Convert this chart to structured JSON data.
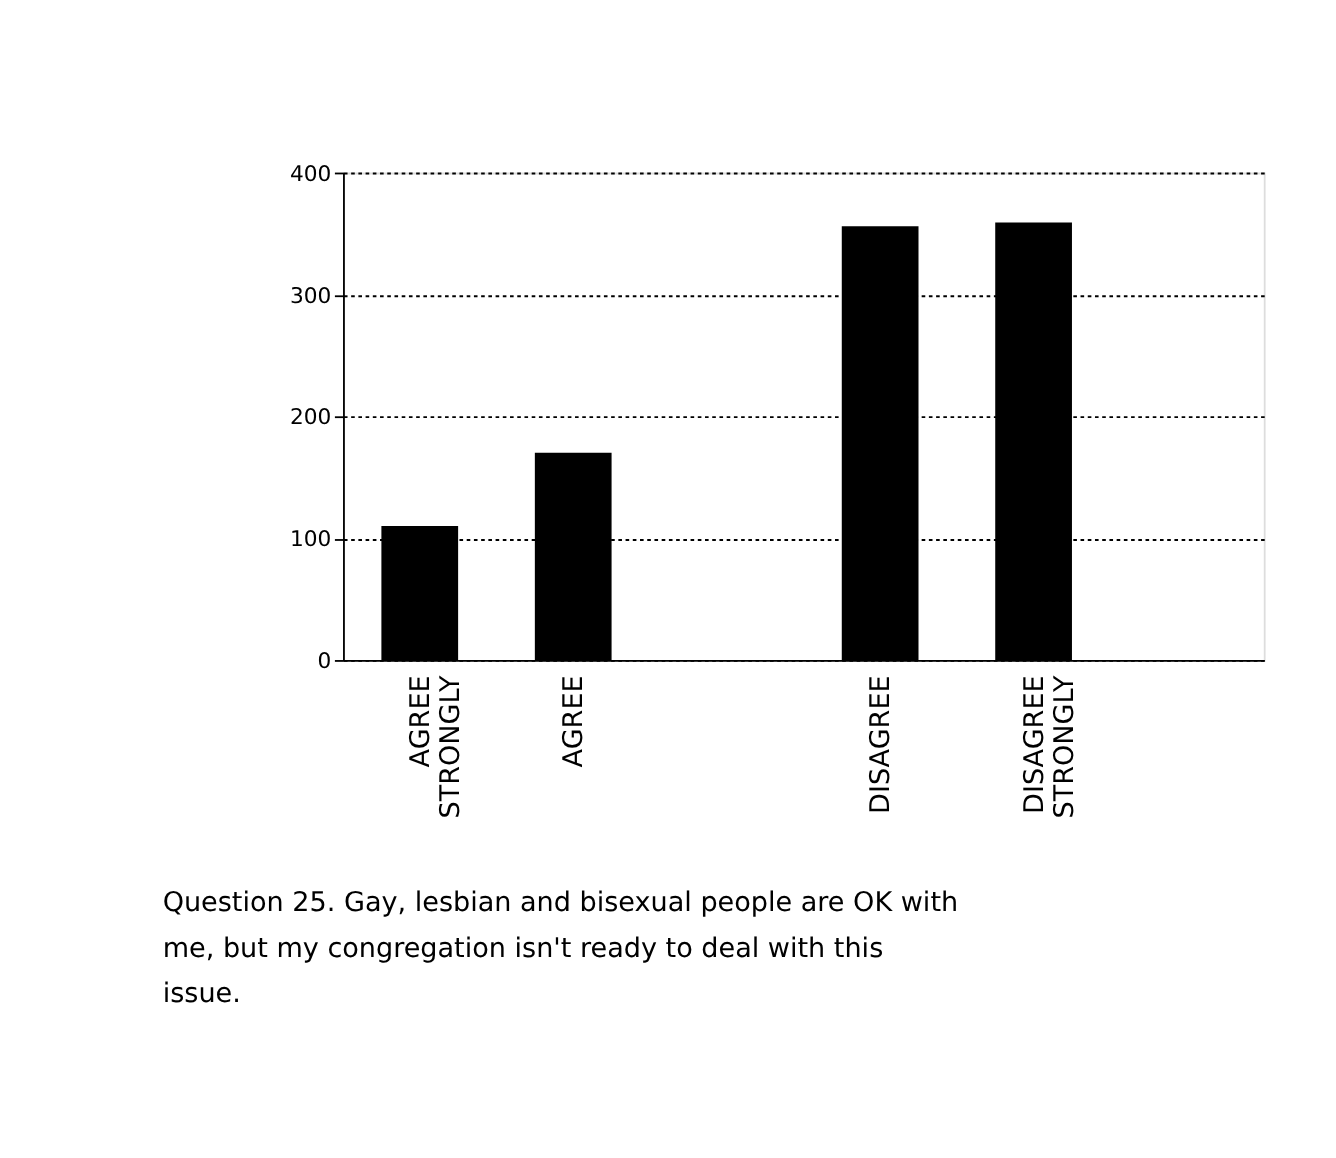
{
  "chart_data": {
    "type": "bar",
    "categories": [
      "AGREE STRONGLY",
      "AGREE",
      null,
      "DISAGREE",
      "DISAGREE STRONGLY",
      null
    ],
    "values": [
      110,
      170,
      null,
      356,
      359,
      null
    ],
    "color": "#000000",
    "ylim": [
      0,
      400
    ],
    "yticks": [
      0,
      100,
      200,
      300,
      400
    ],
    "grid": "y",
    "annotations": [
      "Question 25.  Gay, lesbian and bisexual people are OK with me, but my congregation isn't ready to deal with this issue."
    ]
  }
}
